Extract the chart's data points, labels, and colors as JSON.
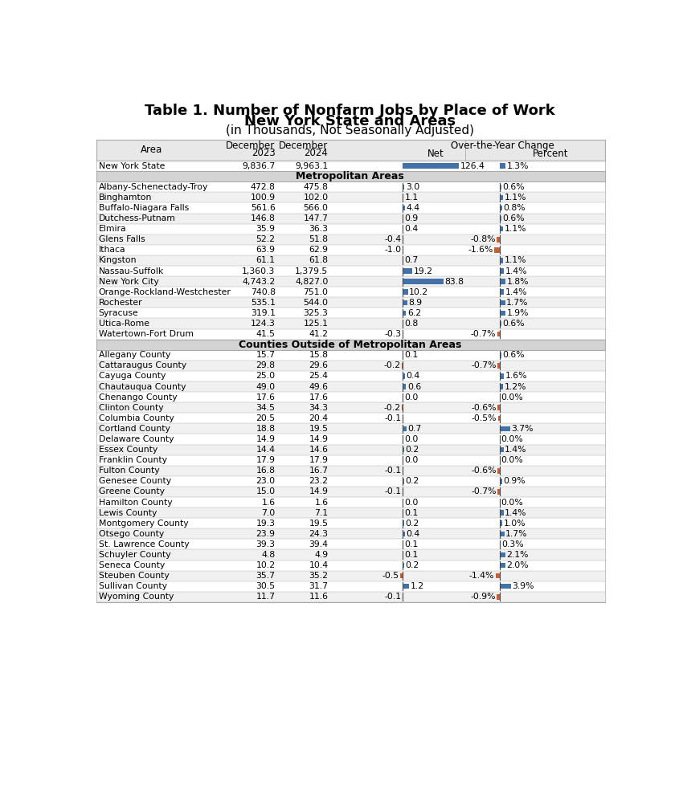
{
  "title_line1": "Table 1. Number of Nonfarm Jobs by Place of Work",
  "title_line2": "New York State and Areas",
  "title_line3": "(in Thousands, Not Seasonally Adjusted)",
  "state_row": [
    "New York State",
    "9,836.7",
    "9,963.1",
    126.4,
    "1.3%"
  ],
  "metro_header": "Metropolitan Areas",
  "metro_rows": [
    [
      "Albany-Schenectady-Troy",
      "472.8",
      "475.8",
      3.0,
      "0.6%"
    ],
    [
      "Binghamton",
      "100.9",
      "102.0",
      1.1,
      "1.1%"
    ],
    [
      "Buffalo-Niagara Falls",
      "561.6",
      "566.0",
      4.4,
      "0.8%"
    ],
    [
      "Dutchess-Putnam",
      "146.8",
      "147.7",
      0.9,
      "0.6%"
    ],
    [
      "Elmira",
      "35.9",
      "36.3",
      0.4,
      "1.1%"
    ],
    [
      "Glens Falls",
      "52.2",
      "51.8",
      -0.4,
      "-0.8%"
    ],
    [
      "Ithaca",
      "63.9",
      "62.9",
      -1.0,
      "-1.6%"
    ],
    [
      "Kingston",
      "61.1",
      "61.8",
      0.7,
      "1.1%"
    ],
    [
      "Nassau-Suffolk",
      "1,360.3",
      "1,379.5",
      19.2,
      "1.4%"
    ],
    [
      "New York City",
      "4,743.2",
      "4,827.0",
      83.8,
      "1.8%"
    ],
    [
      "Orange-Rockland-Westchester",
      "740.8",
      "751.0",
      10.2,
      "1.4%"
    ],
    [
      "Rochester",
      "535.1",
      "544.0",
      8.9,
      "1.7%"
    ],
    [
      "Syracuse",
      "319.1",
      "325.3",
      6.2,
      "1.9%"
    ],
    [
      "Utica-Rome",
      "124.3",
      "125.1",
      0.8,
      "0.6%"
    ],
    [
      "Watertown-Fort Drum",
      "41.5",
      "41.2",
      -0.3,
      "-0.7%"
    ]
  ],
  "county_header": "Counties Outside of Metropolitan Areas",
  "county_rows": [
    [
      "Allegany County",
      "15.7",
      "15.8",
      0.1,
      "0.6%"
    ],
    [
      "Cattaraugus County",
      "29.8",
      "29.6",
      -0.2,
      "-0.7%"
    ],
    [
      "Cayuga County",
      "25.0",
      "25.4",
      0.4,
      "1.6%"
    ],
    [
      "Chautauqua County",
      "49.0",
      "49.6",
      0.6,
      "1.2%"
    ],
    [
      "Chenango County",
      "17.6",
      "17.6",
      0.0,
      "0.0%"
    ],
    [
      "Clinton County",
      "34.5",
      "34.3",
      -0.2,
      "-0.6%"
    ],
    [
      "Columbia County",
      "20.5",
      "20.4",
      -0.1,
      "-0.5%"
    ],
    [
      "Cortland County",
      "18.8",
      "19.5",
      0.7,
      "3.7%"
    ],
    [
      "Delaware County",
      "14.9",
      "14.9",
      0.0,
      "0.0%"
    ],
    [
      "Essex County",
      "14.4",
      "14.6",
      0.2,
      "1.4%"
    ],
    [
      "Franklin County",
      "17.9",
      "17.9",
      0.0,
      "0.0%"
    ],
    [
      "Fulton County",
      "16.8",
      "16.7",
      -0.1,
      "-0.6%"
    ],
    [
      "Genesee County",
      "23.0",
      "23.2",
      0.2,
      "0.9%"
    ],
    [
      "Greene County",
      "15.0",
      "14.9",
      -0.1,
      "-0.7%"
    ],
    [
      "Hamilton County",
      "1.6",
      "1.6",
      0.0,
      "0.0%"
    ],
    [
      "Lewis County",
      "7.0",
      "7.1",
      0.1,
      "1.4%"
    ],
    [
      "Montgomery County",
      "19.3",
      "19.5",
      0.2,
      "1.0%"
    ],
    [
      "Otsego County",
      "23.9",
      "24.3",
      0.4,
      "1.7%"
    ],
    [
      "St. Lawrence County",
      "39.3",
      "39.4",
      0.1,
      "0.3%"
    ],
    [
      "Schuyler County",
      "4.8",
      "4.9",
      0.1,
      "2.1%"
    ],
    [
      "Seneca County",
      "10.2",
      "10.4",
      0.2,
      "2.0%"
    ],
    [
      "Steuben County",
      "35.7",
      "35.2",
      -0.5,
      "-1.4%"
    ],
    [
      "Sullivan County",
      "30.5",
      "31.7",
      1.2,
      "3.9%"
    ],
    [
      "Wyoming County",
      "11.7",
      "11.6",
      -0.1,
      "-0.9%"
    ]
  ],
  "bg_color": "#ffffff",
  "header_bg": "#e8e8e8",
  "section_header_bg": "#d4d4d4",
  "alt_row_bg": "#f0f0f0",
  "white_row_bg": "#ffffff",
  "border_color": "#aaaaaa",
  "text_color": "#000000",
  "bar_positive_color": "#4472a8",
  "bar_negative_color": "#c0623a",
  "title_fontsize": 13,
  "header_fontsize": 8.5,
  "row_fontsize": 7.8,
  "section_fontsize": 9
}
